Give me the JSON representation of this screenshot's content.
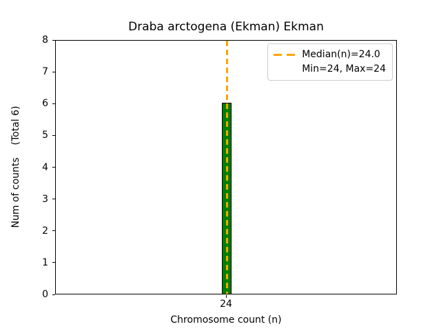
{
  "chart_data": {
    "type": "bar",
    "title": "Draba arctogena (Ekman) Ekman",
    "xlabel": "Chromosome count (n)",
    "ylabel": "Num of counts    (Total 6)",
    "categories": [
      "24"
    ],
    "values": [
      6
    ],
    "total_counts": 6,
    "median_n": "24.0",
    "min_n": 24,
    "max_n": 24,
    "ylim": [
      0,
      8
    ],
    "yticks": [
      0,
      1,
      2,
      3,
      4,
      5,
      6,
      7,
      8
    ],
    "xticks": [
      "24"
    ],
    "grid": false,
    "legend": {
      "position": "upper right",
      "entries": [
        {
          "label": "Median(n)=24.0",
          "handle": "dashed-line",
          "color": "#FFA500"
        },
        {
          "label": "Min=24, Max=24",
          "handle": "none",
          "color": ""
        }
      ]
    },
    "colors": {
      "bar_fill": "#008000",
      "bar_edge": "#000000",
      "median_line": "#FFA500",
      "axis": "#000000",
      "background": "#FFFFFF",
      "legend_border": "#CCCCCC",
      "text": "#000000"
    }
  }
}
